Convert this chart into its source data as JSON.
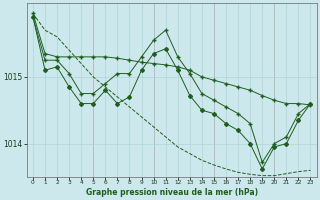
{
  "title": "Graphe pression niveau de la mer (hPa)",
  "background_color": "#cde8ec",
  "grid_color": "#aed4d8",
  "line_color": "#1e5e1e",
  "red_line_color": "#cc4444",
  "xlim": [
    -0.5,
    23.5
  ],
  "ylim": [
    1013.5,
    1016.1
  ],
  "yticks": [
    1014,
    1015
  ],
  "xticks": [
    0,
    1,
    2,
    3,
    4,
    5,
    6,
    7,
    8,
    9,
    10,
    11,
    12,
    13,
    14,
    15,
    16,
    17,
    18,
    19,
    20,
    21,
    22,
    23
  ],
  "series1_x": [
    0,
    1,
    2,
    3,
    4,
    5,
    6,
    7,
    8,
    9,
    10,
    11,
    12,
    13,
    14,
    15,
    16,
    17,
    18,
    19,
    20,
    21,
    22,
    23
  ],
  "series1_y": [
    1015.95,
    1015.7,
    1015.6,
    1015.4,
    1015.2,
    1015.0,
    1014.85,
    1014.7,
    1014.55,
    1014.4,
    1014.25,
    1014.1,
    1013.95,
    1013.85,
    1013.75,
    1013.68,
    1013.62,
    1013.57,
    1013.54,
    1013.52,
    1013.52,
    1013.55,
    1013.58,
    1013.6
  ],
  "series2_x": [
    0,
    1,
    2,
    3,
    4,
    5,
    6,
    7,
    8,
    9,
    10,
    11,
    12,
    13,
    14,
    15,
    16,
    17,
    18,
    19,
    20,
    21,
    22,
    23
  ],
  "series2_y": [
    1015.95,
    1015.35,
    1015.3,
    1015.3,
    1015.3,
    1015.3,
    1015.3,
    1015.28,
    1015.25,
    1015.22,
    1015.2,
    1015.18,
    1015.15,
    1015.1,
    1015.0,
    1014.95,
    1014.9,
    1014.85,
    1014.8,
    1014.72,
    1014.65,
    1014.6,
    1014.6,
    1014.58
  ],
  "series3_x": [
    0,
    1,
    2,
    3,
    4,
    5,
    6,
    7,
    8,
    9,
    10,
    11,
    12,
    13,
    14,
    15,
    16,
    17,
    18,
    19,
    20,
    21,
    22,
    23
  ],
  "series3_y": [
    1015.9,
    1015.25,
    1015.25,
    1015.05,
    1014.75,
    1014.75,
    1014.9,
    1015.05,
    1015.05,
    1015.3,
    1015.55,
    1015.7,
    1015.3,
    1015.05,
    1014.75,
    1014.65,
    1014.55,
    1014.45,
    1014.3,
    1013.72,
    1014.0,
    1014.1,
    1014.45,
    1014.6
  ],
  "series4_x": [
    0,
    1,
    2,
    3,
    4,
    5,
    6,
    7,
    8,
    9,
    10,
    11,
    12,
    13,
    14,
    15,
    16,
    17,
    18,
    19,
    20,
    21,
    22,
    23
  ],
  "series4_y": [
    1015.9,
    1015.1,
    1015.15,
    1014.85,
    1014.6,
    1014.6,
    1014.8,
    1014.6,
    1014.7,
    1015.1,
    1015.35,
    1015.42,
    1015.1,
    1014.72,
    1014.5,
    1014.45,
    1014.3,
    1014.2,
    1014.0,
    1013.62,
    1013.95,
    1014.0,
    1014.35,
    1014.6
  ]
}
